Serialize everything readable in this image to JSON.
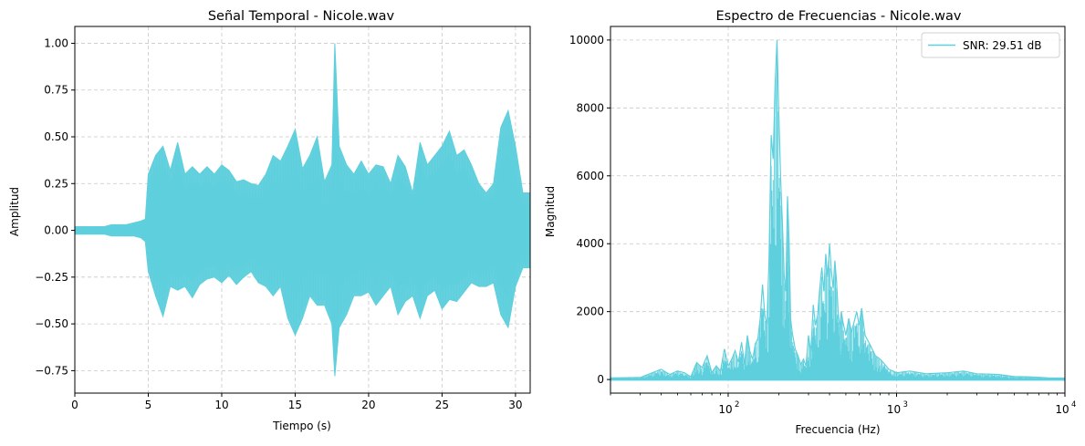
{
  "line_color": "#5ecfdc",
  "chart_data": [
    {
      "type": "line",
      "title": "Señal Temporal - Nicole.wav",
      "xlabel": "Tiempo (s)",
      "ylabel": "Amplitud",
      "xlim": [
        0,
        31
      ],
      "ylim": [
        -0.87,
        1.09
      ],
      "xticks": [
        0,
        5,
        10,
        15,
        20,
        25,
        30
      ],
      "xtick_labels": [
        "0",
        "5",
        "10",
        "15",
        "20",
        "25",
        "30"
      ],
      "yticks": [
        -0.75,
        -0.5,
        -0.25,
        0.0,
        0.25,
        0.5,
        0.75,
        1.0
      ],
      "ytick_labels": [
        "−0.75",
        "−0.50",
        "−0.25",
        "0.00",
        "0.25",
        "0.50",
        "0.75",
        "1.00"
      ],
      "grid": true,
      "series": [
        {
          "x": [
            0,
            0.5,
            1,
            1.5,
            2,
            2.5,
            3,
            3.5,
            4,
            4.5,
            4.8,
            5,
            5.5,
            6,
            6.5,
            7,
            7.5,
            8,
            8.5,
            9,
            9.5,
            10,
            10.5,
            11,
            11.5,
            12,
            12.5,
            13,
            13.5,
            14,
            14.5,
            15,
            15.5,
            16,
            16.5,
            17,
            17.5,
            17.7,
            18,
            18.5,
            19,
            19.5,
            20,
            20.5,
            21,
            21.5,
            22,
            22.5,
            23,
            23.5,
            24,
            24.5,
            25,
            25.5,
            26,
            26.5,
            27,
            27.5,
            28,
            28.5,
            29,
            29.5,
            30,
            30.5,
            31
          ],
          "y_max": [
            0.02,
            0.02,
            0.02,
            0.02,
            0.02,
            0.03,
            0.03,
            0.03,
            0.04,
            0.05,
            0.06,
            0.3,
            0.4,
            0.45,
            0.32,
            0.47,
            0.3,
            0.34,
            0.3,
            0.34,
            0.3,
            0.35,
            0.32,
            0.26,
            0.27,
            0.25,
            0.24,
            0.3,
            0.4,
            0.37,
            0.45,
            0.54,
            0.33,
            0.4,
            0.5,
            0.26,
            0.35,
            1.0,
            0.45,
            0.35,
            0.3,
            0.37,
            0.3,
            0.35,
            0.34,
            0.25,
            0.4,
            0.34,
            0.2,
            0.47,
            0.35,
            0.4,
            0.45,
            0.53,
            0.4,
            0.43,
            0.35,
            0.25,
            0.2,
            0.25,
            0.55,
            0.64,
            0.45,
            0.2,
            0.2
          ],
          "y_min": [
            -0.02,
            -0.02,
            -0.02,
            -0.02,
            -0.02,
            -0.03,
            -0.03,
            -0.03,
            -0.03,
            -0.04,
            -0.06,
            -0.22,
            -0.35,
            -0.46,
            -0.3,
            -0.32,
            -0.3,
            -0.36,
            -0.29,
            -0.26,
            -0.25,
            -0.28,
            -0.24,
            -0.29,
            -0.25,
            -0.22,
            -0.28,
            -0.3,
            -0.35,
            -0.3,
            -0.47,
            -0.56,
            -0.47,
            -0.35,
            -0.4,
            -0.4,
            -0.5,
            -0.78,
            -0.52,
            -0.45,
            -0.35,
            -0.35,
            -0.33,
            -0.4,
            -0.35,
            -0.3,
            -0.45,
            -0.38,
            -0.35,
            -0.47,
            -0.35,
            -0.32,
            -0.42,
            -0.37,
            -0.38,
            -0.33,
            -0.28,
            -0.3,
            -0.3,
            -0.28,
            -0.45,
            -0.52,
            -0.3,
            -0.2,
            -0.2
          ]
        }
      ]
    },
    {
      "type": "line",
      "title": "Espectro de Frecuencias - Nicole.wav",
      "xlabel": "Frecuencia (Hz)",
      "ylabel": "Magnitud",
      "xscale": "log",
      "xlim": [
        20,
        10000
      ],
      "ylim": [
        -400,
        10400
      ],
      "xticks": [
        100,
        1000,
        10000
      ],
      "xtick_labels": [
        "10",
        "10",
        "10"
      ],
      "xtick_exponents": [
        "2",
        "3",
        "4"
      ],
      "yticks": [
        0,
        2000,
        4000,
        6000,
        8000,
        10000
      ],
      "ytick_labels": [
        "0",
        "2000",
        "4000",
        "6000",
        "8000",
        "10000"
      ],
      "grid": true,
      "legend": "upper right",
      "series": [
        {
          "name": "SNR: 29.51 dB",
          "x": [
            20,
            30,
            40,
            45,
            50,
            55,
            60,
            65,
            70,
            75,
            80,
            85,
            90,
            95,
            100,
            105,
            110,
            115,
            120,
            125,
            130,
            135,
            140,
            145,
            150,
            155,
            160,
            165,
            170,
            175,
            180,
            185,
            190,
            195,
            200,
            205,
            210,
            215,
            220,
            225,
            230,
            235,
            240,
            250,
            260,
            270,
            280,
            290,
            300,
            310,
            320,
            330,
            340,
            350,
            360,
            370,
            380,
            390,
            400,
            410,
            420,
            430,
            440,
            450,
            460,
            470,
            480,
            500,
            520,
            540,
            560,
            580,
            600,
            620,
            650,
            700,
            750,
            800,
            850,
            900,
            950,
            1000,
            1200,
            1500,
            2000,
            2500,
            3000,
            4000,
            5000,
            6000,
            8000,
            10000
          ],
          "y": [
            50,
            60,
            300,
            150,
            250,
            200,
            80,
            500,
            350,
            700,
            200,
            400,
            250,
            900,
            400,
            600,
            850,
            500,
            1100,
            450,
            1300,
            800,
            600,
            1050,
            1200,
            1800,
            2800,
            1900,
            1600,
            3600,
            7200,
            6500,
            8700,
            10000,
            7800,
            5900,
            4600,
            3100,
            2600,
            5400,
            4100,
            1800,
            1400,
            900,
            700,
            450,
            600,
            400,
            1300,
            800,
            2200,
            1600,
            1900,
            2700,
            3300,
            2600,
            3700,
            3000,
            4000,
            3200,
            2700,
            3500,
            2900,
            2000,
            1500,
            2000,
            1700,
            1300,
            1800,
            1400,
            1700,
            2000,
            1600,
            2100,
            1300,
            1000,
            700,
            600,
            450,
            300,
            250,
            200,
            250,
            170,
            200,
            250,
            170,
            150,
            90,
            80,
            50,
            40
          ],
          "y_floor": 0
        }
      ]
    }
  ]
}
